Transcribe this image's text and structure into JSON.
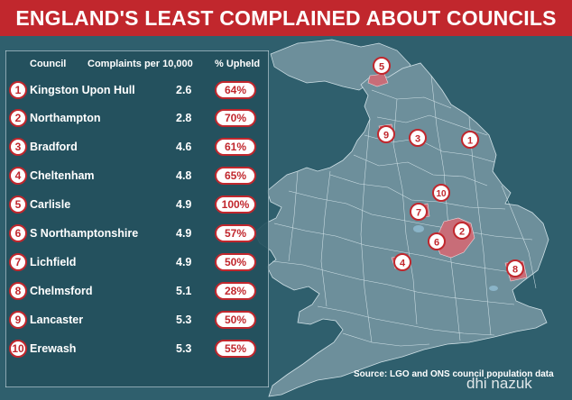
{
  "title": "ENGLAND'S LEAST COMPLAINED ABOUT COUNCILS",
  "table": {
    "headers": {
      "council": "Council",
      "rate": "Complaints per 10,000",
      "upheld": "% Upheld"
    },
    "rows": [
      {
        "rank": "1",
        "council": "Kingston Upon Hull",
        "rate": "2.6",
        "upheld": "64%"
      },
      {
        "rank": "2",
        "council": "Northampton",
        "rate": "2.8",
        "upheld": "70%"
      },
      {
        "rank": "3",
        "council": "Bradford",
        "rate": "4.6",
        "upheld": "61%"
      },
      {
        "rank": "4",
        "council": "Cheltenham",
        "rate": "4.8",
        "upheld": "65%"
      },
      {
        "rank": "5",
        "council": "Carlisle",
        "rate": "4.9",
        "upheld": "100%"
      },
      {
        "rank": "6",
        "council": "S Northamptonshire",
        "rate": "4.9",
        "upheld": "57%"
      },
      {
        "rank": "7",
        "council": "Lichfield",
        "rate": "4.9",
        "upheld": "50%"
      },
      {
        "rank": "8",
        "council": "Chelmsford",
        "rate": "5.1",
        "upheld": "28%"
      },
      {
        "rank": "9",
        "council": "Lancaster",
        "rate": "5.3",
        "upheld": "50%"
      },
      {
        "rank": "10",
        "council": "Erewash",
        "rate": "5.3",
        "upheld": "55%"
      }
    ]
  },
  "map_markers": [
    "5",
    "9",
    "3",
    "1",
    "10",
    "7",
    "6",
    "2",
    "4",
    "8"
  ],
  "source": "Source: LGO and ONS council population data",
  "watermark": "dhi nazuk",
  "colors": {
    "accent": "#c1272d",
    "background": "#2f5f6d",
    "land": "#6d8f9b",
    "highlight": "#c86d78",
    "panel": "#24505d"
  }
}
